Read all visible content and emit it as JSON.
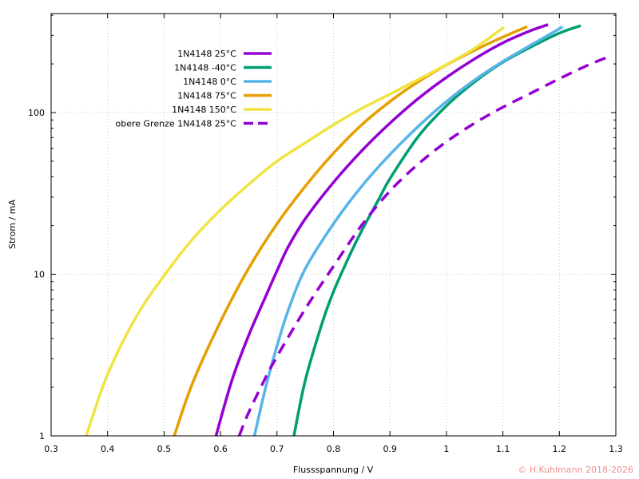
{
  "chart_data": {
    "type": "line",
    "xlabel": "Flussspannung / V",
    "ylabel": "Strom / mA",
    "xlim": [
      0.3,
      1.3
    ],
    "ylim": [
      1,
      400
    ],
    "yscale": "log",
    "grid": true,
    "legend_position": "top-left",
    "x_ticks": [
      0.3,
      0.4,
      0.5,
      0.6,
      0.7,
      0.8,
      0.9,
      1.0,
      1.1,
      1.2,
      1.3
    ],
    "x_tick_labels": [
      "0.3",
      "0.4",
      "0.5",
      "0.6",
      "0.7",
      "0.8",
      "0.9",
      "1",
      "1.1",
      "1.2",
      "1.3"
    ],
    "y_ticks": [
      1,
      10,
      100
    ],
    "y_tick_labels": [
      "1",
      "10",
      "100"
    ],
    "series": [
      {
        "name": "1N4148 25°C",
        "color": "#9400d3",
        "dash": "solid",
        "x": [
          0.592,
          0.62,
          0.65,
          0.68,
          0.7,
          0.72,
          0.75,
          0.8,
          0.85,
          0.9,
          0.95,
          1.0,
          1.05,
          1.1,
          1.15,
          1.18
        ],
        "y": [
          1,
          2.2,
          4.2,
          7.3,
          10.5,
          14.8,
          22,
          37,
          58,
          86,
          122,
          165,
          215,
          270,
          322,
          350
        ]
      },
      {
        "name": "1N4148 -40°C",
        "color": "#009e73",
        "dash": "solid",
        "x": [
          0.73,
          0.75,
          0.78,
          0.8,
          0.83,
          0.85,
          0.88,
          0.9,
          0.95,
          1.0,
          1.05,
          1.1,
          1.15,
          1.2,
          1.238
        ],
        "y": [
          1,
          2.2,
          5,
          7.8,
          13.4,
          18.6,
          29,
          39,
          71,
          110,
          155,
          205,
          255,
          310,
          345
        ]
      },
      {
        "name": "1N4148 0°C",
        "color": "#56b4e9",
        "dash": "solid",
        "x": [
          0.66,
          0.68,
          0.7,
          0.72,
          0.75,
          0.8,
          0.85,
          0.9,
          0.95,
          1.0,
          1.05,
          1.1,
          1.15,
          1.2,
          1.205
        ],
        "y": [
          1,
          2,
          3.6,
          6,
          10.8,
          20.5,
          35,
          55,
          82,
          117,
          159,
          207,
          262,
          330,
          340
        ]
      },
      {
        "name": "1N4148 75°C",
        "color": "#e69f00",
        "dash": "solid",
        "x": [
          0.518,
          0.55,
          0.6,
          0.65,
          0.7,
          0.75,
          0.8,
          0.85,
          0.9,
          0.95,
          1.0,
          1.05,
          1.1,
          1.143
        ],
        "y": [
          1,
          2.1,
          5.1,
          10.9,
          20.5,
          35,
          56,
          84,
          117,
          155,
          197,
          243,
          293,
          340
        ]
      },
      {
        "name": "1N4148 150°C",
        "color": "#f0e442",
        "dash": "solid",
        "x": [
          0.362,
          0.4,
          0.45,
          0.5,
          0.55,
          0.6,
          0.65,
          0.7,
          0.75,
          0.8,
          0.85,
          0.9,
          0.95,
          1.0,
          1.05,
          1.102
        ],
        "y": [
          1,
          2.4,
          5.4,
          9.8,
          16.4,
          25,
          36,
          50,
          65,
          84,
          106,
          130,
          160,
          198,
          250,
          338
        ]
      },
      {
        "name": "obere Grenze 1N4148 25°C",
        "color": "#9400d3",
        "dash": "dashed",
        "x": [
          0.633,
          0.65,
          0.68,
          0.7,
          0.75,
          0.8,
          0.85,
          0.9,
          0.95,
          1.0,
          1.05,
          1.1,
          1.15,
          1.2,
          1.25,
          1.292
        ],
        "y": [
          1,
          1.4,
          2.3,
          3.1,
          6.1,
          11.2,
          20.1,
          32.7,
          48,
          66,
          86,
          108,
          132,
          162,
          196,
          225
        ]
      }
    ]
  },
  "copyright": {
    "text": "© H.Kuhlmann 2018-2026",
    "color": "#ef8f8f"
  }
}
